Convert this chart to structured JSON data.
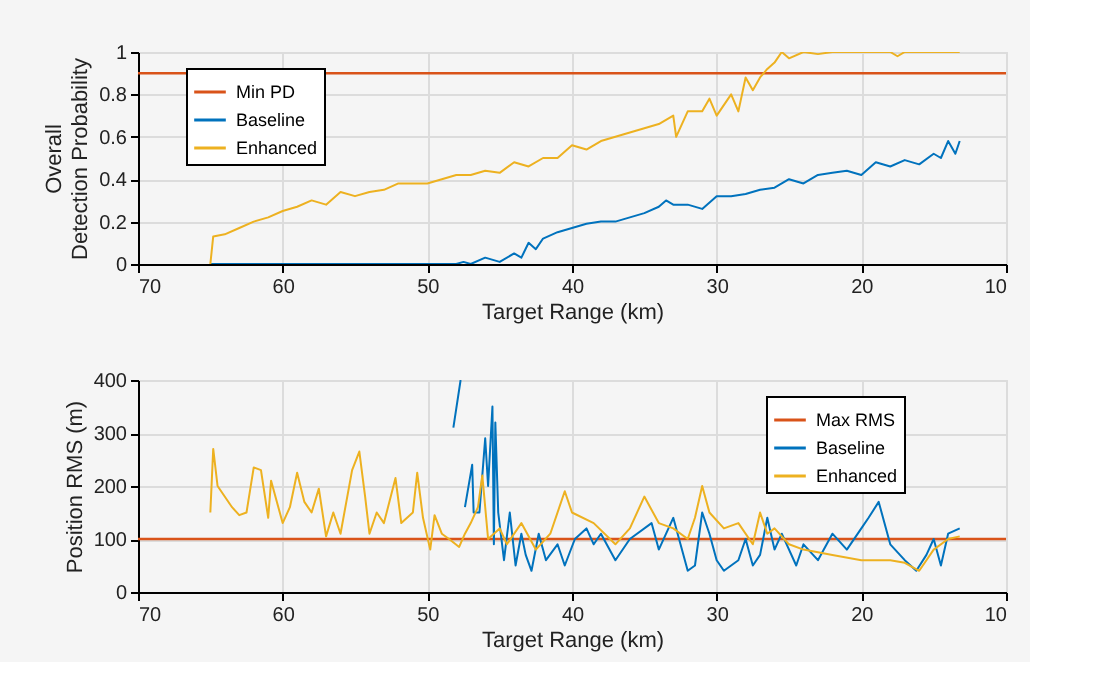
{
  "chart_data": [
    {
      "type": "line",
      "xlabel": "Target Range (km)",
      "ylabel": "Overall\nDetection Probability",
      "xlim": [
        70,
        10
      ],
      "xticks": [
        70,
        60,
        50,
        40,
        30,
        20,
        10
      ],
      "ylim": [
        0,
        1
      ],
      "yticks": [
        0,
        0.2,
        0.4,
        0.6,
        0.8,
        1
      ],
      "grid": true,
      "legend": "top left",
      "marker": "none",
      "line_style": "solid",
      "ref_lines": [
        {
          "axis": "y",
          "value": 0.9,
          "label": "Min PD",
          "color": "#d95319"
        }
      ],
      "series": [
        {
          "name": "Baseline",
          "color": "#0072bd",
          "x": [
            65,
            60,
            55,
            50,
            48,
            47.5,
            47,
            46,
            45,
            44,
            43.5,
            43,
            42.5,
            42,
            41,
            40,
            39,
            38,
            37,
            36,
            35,
            34,
            33.5,
            33,
            32,
            31,
            30,
            29,
            28,
            27,
            26,
            25,
            24,
            23,
            22,
            21,
            20,
            19,
            18,
            17,
            16,
            15,
            14.5,
            14,
            13.5,
            13.2
          ],
          "values": [
            0,
            0,
            0,
            0,
            0,
            0.01,
            0,
            0.03,
            0.01,
            0.05,
            0.03,
            0.1,
            0.07,
            0.12,
            0.15,
            0.17,
            0.19,
            0.2,
            0.2,
            0.22,
            0.24,
            0.27,
            0.3,
            0.28,
            0.28,
            0.26,
            0.32,
            0.32,
            0.33,
            0.35,
            0.36,
            0.4,
            0.38,
            0.42,
            0.43,
            0.44,
            0.42,
            0.48,
            0.46,
            0.49,
            0.47,
            0.52,
            0.5,
            0.58,
            0.52,
            0.58
          ]
        },
        {
          "name": "Enhanced",
          "color": "#edb120",
          "x": [
            65,
            64.8,
            64,
            63,
            62,
            61,
            60,
            59,
            58,
            57,
            56,
            55,
            54,
            53,
            52,
            51,
            50,
            49,
            48,
            47,
            46,
            45,
            44,
            43,
            42,
            41,
            40,
            39,
            38,
            37,
            36,
            35,
            34,
            33,
            32.8,
            32,
            31,
            30.5,
            30,
            29,
            28.5,
            28,
            27.5,
            27,
            26.5,
            26,
            25.5,
            25,
            24,
            23,
            22,
            21,
            20,
            19,
            18,
            17.5,
            17,
            16,
            15,
            14,
            13.2
          ],
          "values": [
            0,
            0.13,
            0.14,
            0.17,
            0.2,
            0.22,
            0.25,
            0.27,
            0.3,
            0.28,
            0.34,
            0.32,
            0.34,
            0.35,
            0.38,
            0.38,
            0.38,
            0.4,
            0.42,
            0.42,
            0.44,
            0.43,
            0.48,
            0.46,
            0.5,
            0.5,
            0.56,
            0.54,
            0.58,
            0.6,
            0.62,
            0.64,
            0.66,
            0.7,
            0.6,
            0.72,
            0.72,
            0.78,
            0.7,
            0.8,
            0.72,
            0.88,
            0.82,
            0.88,
            0.92,
            0.95,
            1,
            0.97,
            1,
            0.99,
            1,
            1,
            1,
            1,
            1,
            0.98,
            1,
            1,
            1,
            1,
            1
          ]
        }
      ]
    },
    {
      "type": "line",
      "xlabel": "Target Range (km)",
      "ylabel": "Position RMS (m)",
      "xlim": [
        70,
        10
      ],
      "xticks": [
        70,
        60,
        50,
        40,
        30,
        20,
        10
      ],
      "ylim": [
        0,
        400
      ],
      "yticks": [
        0,
        100,
        200,
        300,
        400
      ],
      "grid": true,
      "legend": "top right",
      "marker": "none",
      "line_style": "solid",
      "ref_lines": [
        {
          "axis": "y",
          "value": 100,
          "label": "Max RMS",
          "color": "#d95319"
        }
      ],
      "series": [
        {
          "name": "Baseline",
          "color": "#0072bd",
          "x": [
            48.2,
            47.7,
            47.6,
            47.4,
            46.9,
            46.8,
            46.4,
            46,
            45.8,
            45.6,
            45.5,
            45.4,
            45.3,
            45.1,
            44.7,
            44.3,
            43.9,
            43.5,
            43.2,
            42.8,
            42.3,
            41.8,
            41,
            40.5,
            39.8,
            39,
            38.5,
            38,
            37,
            36,
            34.5,
            34,
            33,
            32.5,
            32,
            31.5,
            31,
            30.5,
            30,
            29.5,
            28.5,
            28,
            27.5,
            27,
            26.5,
            26,
            25.5,
            24.5,
            24,
            23,
            22,
            21,
            20,
            19.5,
            18.8,
            18,
            17,
            16.2,
            15.5,
            15,
            14.5,
            14,
            13.2
          ],
          "values": [
            310,
            400,
            null,
            160,
            240,
            150,
            150,
            290,
            200,
            300,
            350,
            90,
            320,
            150,
            60,
            150,
            50,
            110,
            70,
            40,
            110,
            60,
            90,
            50,
            100,
            120,
            90,
            110,
            60,
            100,
            130,
            80,
            140,
            90,
            40,
            50,
            150,
            110,
            60,
            40,
            60,
            100,
            50,
            70,
            140,
            80,
            110,
            50,
            90,
            60,
            110,
            80,
            120,
            140,
            170,
            90,
            60,
            40,
            70,
            100,
            50,
            110,
            120
          ]
        },
        {
          "name": "Enhanced",
          "color": "#edb120",
          "x": [
            65,
            64.8,
            64.5,
            63.5,
            63,
            62.5,
            62,
            61.5,
            61,
            60.8,
            60,
            59.5,
            59,
            58.5,
            58,
            57.5,
            57,
            56.5,
            56,
            55.2,
            54.7,
            54.3,
            54,
            53.5,
            53,
            52.2,
            51.8,
            51,
            50.7,
            50.3,
            49.8,
            49.5,
            49,
            48.5,
            47.8,
            47.4,
            47,
            46.5,
            46.2,
            45.8,
            45,
            44.5,
            43.5,
            42.5,
            41.5,
            40.5,
            40,
            38.5,
            37,
            36,
            35,
            34,
            33,
            32,
            31.5,
            31,
            30.5,
            29.5,
            28.5,
            27.5,
            27,
            26.5,
            26,
            25,
            24,
            22,
            20,
            18,
            17,
            16,
            15.5,
            15,
            14,
            13.2
          ],
          "values": [
            150,
            270,
            200,
            160,
            145,
            150,
            235,
            230,
            140,
            210,
            130,
            160,
            225,
            170,
            150,
            195,
            105,
            150,
            110,
            230,
            265,
            180,
            110,
            150,
            130,
            215,
            130,
            150,
            225,
            140,
            80,
            145,
            110,
            100,
            85,
            110,
            130,
            160,
            220,
            100,
            120,
            90,
            130,
            80,
            110,
            190,
            150,
            130,
            90,
            120,
            180,
            130,
            120,
            100,
            140,
            200,
            150,
            120,
            130,
            90,
            150,
            110,
            120,
            90,
            80,
            70,
            60,
            60,
            55,
            40,
            60,
            80,
            100,
            105
          ]
        }
      ]
    }
  ]
}
